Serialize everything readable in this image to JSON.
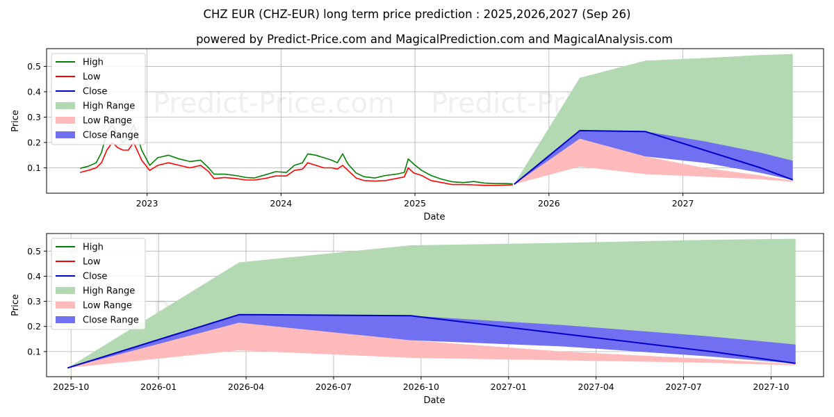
{
  "title": "CHZ EUR (CHZ-EUR) long term price prediction : 2025,2026,2027 (Sep 26)",
  "subtitle": "powered by Predict-Price.com and MagicalPrediction.com and MagicalAnalysis.com",
  "watermark": "Predict-Price.com",
  "colors": {
    "high": "#008000",
    "low": "#ff0000",
    "close": "#0000cc",
    "high_range": "#b3d9b3",
    "low_range": "#ffbbbb",
    "close_range": "#7070f0",
    "grid": "#b0b0b0"
  },
  "chart_data": [
    {
      "type": "line",
      "title": "",
      "xlabel": "Date",
      "ylabel": "Price",
      "xlim": [
        2022.25,
        2028.05
      ],
      "ylim": [
        0.0,
        0.57
      ],
      "x_ticks": [
        2023,
        2024,
        2025,
        2026,
        2027
      ],
      "x_tick_labels": [
        "2023",
        "2024",
        "2025",
        "2026",
        "2027"
      ],
      "y_ticks": [
        0.1,
        0.2,
        0.3,
        0.4,
        0.5
      ],
      "y_tick_labels": [
        "0.1",
        "0.2",
        "0.3",
        "0.4",
        "0.5"
      ],
      "grid": true,
      "legend_position": "top-left",
      "legend": [
        "High",
        "Low",
        "Close",
        "High Range",
        "Low Range",
        "Close Range"
      ],
      "history": {
        "x": [
          2022.5,
          2022.56,
          2022.62,
          2022.66,
          2022.7,
          2022.74,
          2022.78,
          2022.82,
          2022.86,
          2022.9,
          2022.96,
          2023.02,
          2023.08,
          2023.16,
          2023.24,
          2023.32,
          2023.4,
          2023.46,
          2023.5,
          2023.58,
          2023.66,
          2023.74,
          2023.8,
          2023.88,
          2023.96,
          2024.04,
          2024.1,
          2024.16,
          2024.2,
          2024.26,
          2024.32,
          2024.38,
          2024.42,
          2024.46,
          2024.5,
          2024.56,
          2024.62,
          2024.7,
          2024.78,
          2024.86,
          2024.92,
          2024.95,
          2024.99,
          2025.05,
          2025.12,
          2025.2,
          2025.28,
          2025.36,
          2025.44,
          2025.52,
          2025.6,
          2025.68,
          2025.73
        ],
        "high": [
          0.098,
          0.106,
          0.12,
          0.16,
          0.24,
          0.27,
          0.23,
          0.2,
          0.22,
          0.27,
          0.17,
          0.11,
          0.14,
          0.15,
          0.135,
          0.125,
          0.13,
          0.1,
          0.075,
          0.075,
          0.07,
          0.062,
          0.06,
          0.072,
          0.085,
          0.082,
          0.11,
          0.12,
          0.155,
          0.15,
          0.14,
          0.13,
          0.12,
          0.155,
          0.115,
          0.08,
          0.065,
          0.06,
          0.07,
          0.075,
          0.082,
          0.135,
          0.115,
          0.09,
          0.07,
          0.055,
          0.045,
          0.042,
          0.046,
          0.04,
          0.038,
          0.038,
          0.037
        ],
        "low": [
          0.082,
          0.09,
          0.1,
          0.12,
          0.17,
          0.2,
          0.18,
          0.17,
          0.17,
          0.2,
          0.13,
          0.09,
          0.11,
          0.12,
          0.11,
          0.1,
          0.11,
          0.085,
          0.058,
          0.062,
          0.058,
          0.052,
          0.052,
          0.058,
          0.068,
          0.068,
          0.09,
          0.095,
          0.12,
          0.11,
          0.1,
          0.1,
          0.095,
          0.11,
          0.09,
          0.06,
          0.05,
          0.048,
          0.05,
          0.058,
          0.064,
          0.1,
          0.08,
          0.07,
          0.05,
          0.042,
          0.034,
          0.034,
          0.033,
          0.031,
          0.031,
          0.032,
          0.033
        ]
      },
      "forecast": {
        "x": [
          2025.74,
          2026.23,
          2026.72,
          2027.16,
          2027.58,
          2027.82
        ],
        "close": [
          0.035,
          0.247,
          0.243,
          0.17,
          0.1,
          0.053
        ],
        "high_range_upper": [
          0.035,
          0.455,
          0.523,
          0.533,
          0.545,
          0.549
        ],
        "high_range_lower": [
          0.035,
          0.2,
          0.18,
          0.13,
          0.08,
          0.05
        ],
        "low_range_upper": [
          0.035,
          0.215,
          0.145,
          0.1,
          0.07,
          0.05
        ],
        "low_range_lower": [
          0.035,
          0.105,
          0.075,
          0.065,
          0.055,
          0.045
        ],
        "close_range_upper": [
          0.035,
          0.247,
          0.243,
          0.205,
          0.16,
          0.128
        ],
        "close_range_lower": [
          0.035,
          0.215,
          0.145,
          0.12,
          0.08,
          0.053
        ]
      }
    },
    {
      "type": "area",
      "title": "",
      "xlabel": "Date",
      "ylabel": "Price",
      "xlim": [
        2025.68,
        2027.9
      ],
      "ylim": [
        0.0,
        0.57
      ],
      "x_ticks": [
        2025.75,
        2026.0,
        2026.25,
        2026.5,
        2026.75,
        2027.0,
        2027.25,
        2027.5,
        2027.75
      ],
      "x_tick_labels": [
        "2025-10",
        "2026-01",
        "2026-04",
        "2026-07",
        "2026-10",
        "2027-01",
        "2027-04",
        "2027-07",
        "2027-10"
      ],
      "y_ticks": [
        0.1,
        0.2,
        0.3,
        0.4,
        0.5
      ],
      "y_tick_labels": [
        "0.1",
        "0.2",
        "0.3",
        "0.4",
        "0.5"
      ],
      "grid": true,
      "legend_position": "top-left",
      "legend": [
        "High",
        "Low",
        "Close",
        "High Range",
        "Low Range",
        "Close Range"
      ],
      "forecast": {
        "x": [
          2025.74,
          2026.23,
          2026.72,
          2027.16,
          2027.58,
          2027.82
        ],
        "close": [
          0.035,
          0.247,
          0.243,
          0.17,
          0.1,
          0.053
        ],
        "high_range_upper": [
          0.035,
          0.455,
          0.523,
          0.533,
          0.545,
          0.549
        ],
        "high_range_lower": [
          0.035,
          0.2,
          0.18,
          0.13,
          0.08,
          0.05
        ],
        "low_range_upper": [
          0.035,
          0.215,
          0.145,
          0.1,
          0.07,
          0.05
        ],
        "low_range_lower": [
          0.035,
          0.105,
          0.075,
          0.065,
          0.055,
          0.045
        ],
        "close_range_upper": [
          0.035,
          0.247,
          0.243,
          0.205,
          0.16,
          0.128
        ],
        "close_range_lower": [
          0.035,
          0.215,
          0.145,
          0.12,
          0.08,
          0.053
        ]
      }
    }
  ]
}
